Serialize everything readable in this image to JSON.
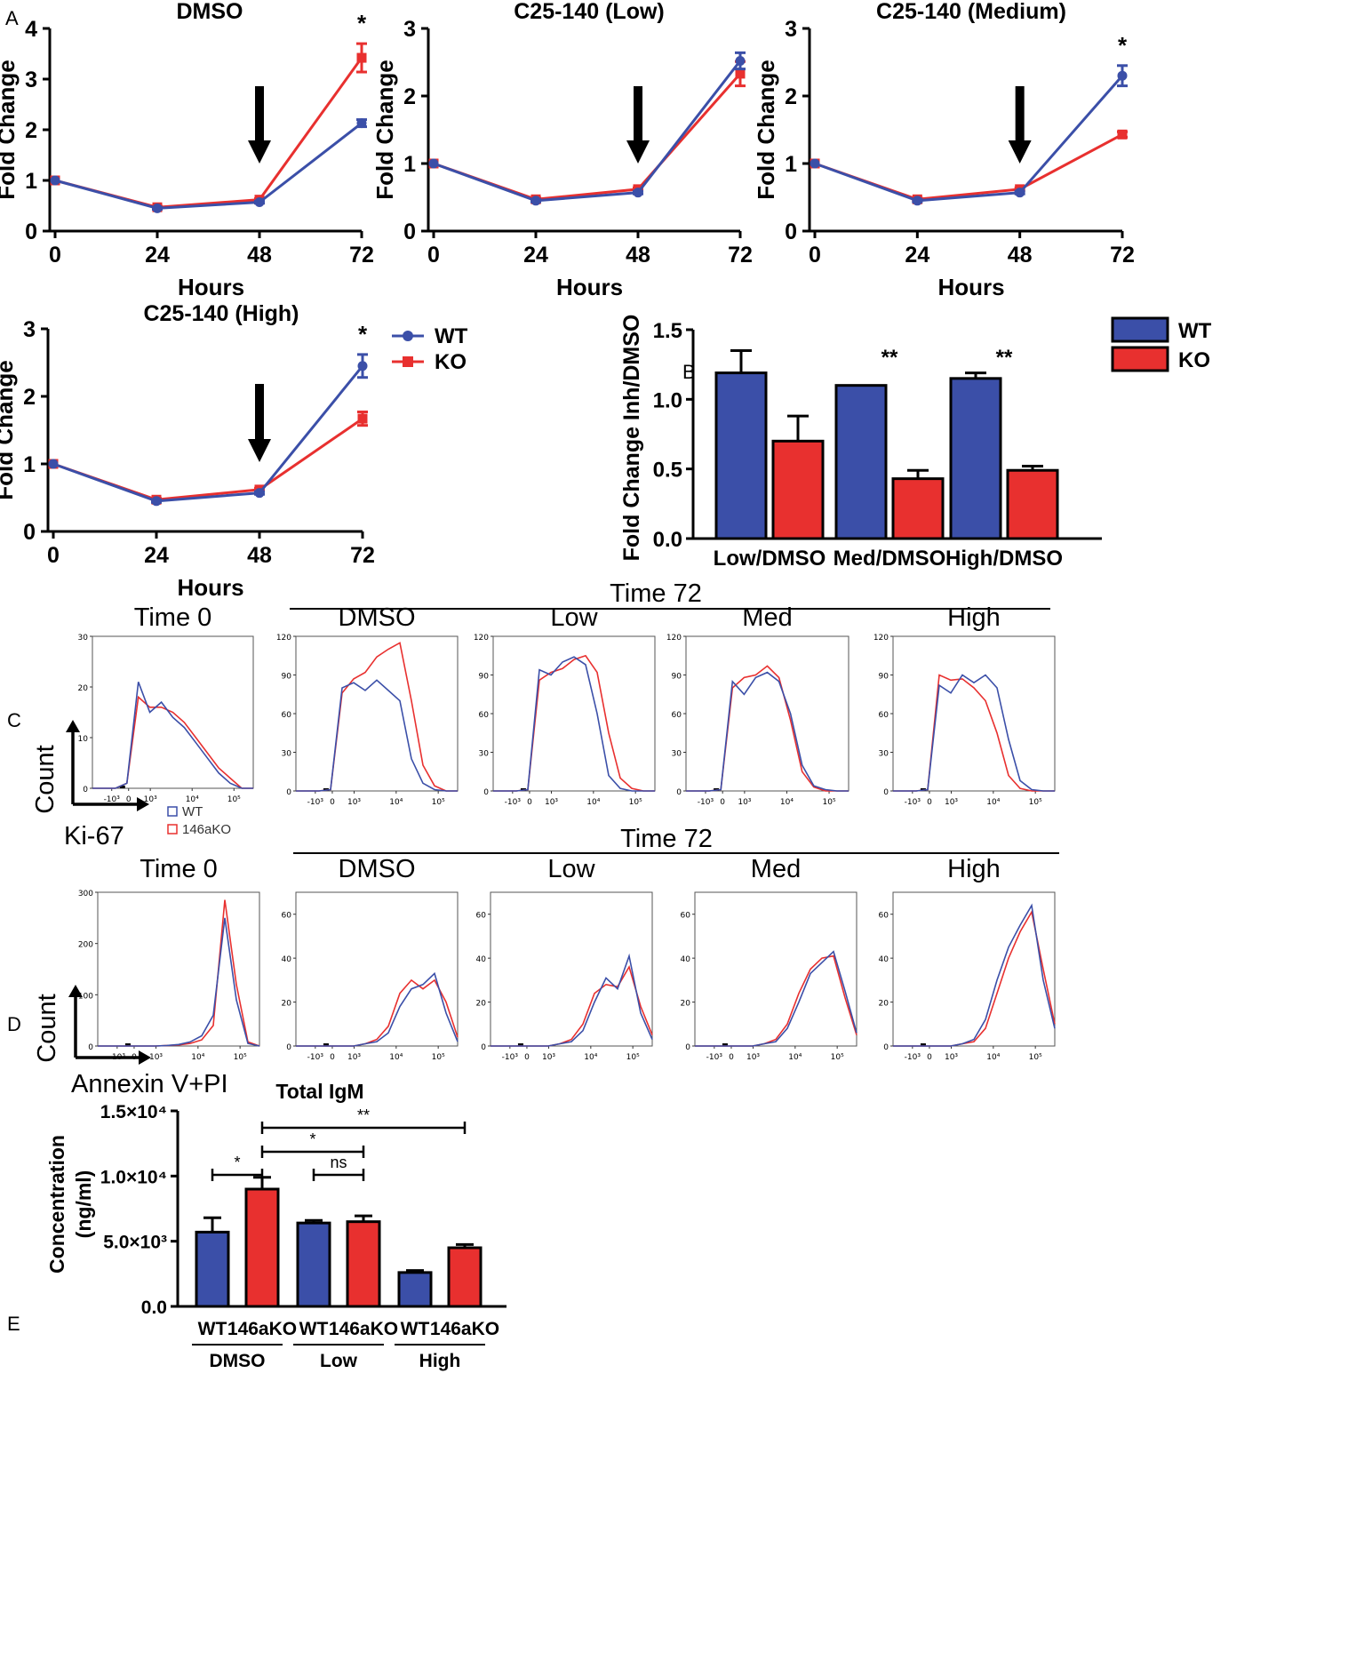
{
  "colors": {
    "wt": "#3b4fa8",
    "ko": "#e8302f",
    "axis": "#000000"
  },
  "panel_labels": {
    "a": "A",
    "b": "B",
    "c": "C",
    "d": "D",
    "e": "E"
  },
  "chart_data": [
    {
      "id": "A1",
      "type": "line",
      "title": "DMSO",
      "xlabel": "Hours",
      "ylabel": "Fold Change",
      "x": [
        0,
        24,
        48,
        72
      ],
      "xticks": [
        "0",
        "24",
        "48",
        "72"
      ],
      "ylim": [
        0,
        4
      ],
      "yticks": [
        "0",
        "1",
        "2",
        "3",
        "4"
      ],
      "arrow_at": 48,
      "sig": "*",
      "series": [
        {
          "name": "WT",
          "values": [
            1.0,
            0.45,
            0.57,
            2.13
          ],
          "err": [
            0,
            0.02,
            0.02,
            0.07
          ]
        },
        {
          "name": "KO",
          "values": [
            1.0,
            0.47,
            0.62,
            3.42
          ],
          "err": [
            0,
            0.02,
            0.02,
            0.28
          ]
        }
      ]
    },
    {
      "id": "A2",
      "type": "line",
      "title": "C25-140 (Low)",
      "xlabel": "Hours",
      "ylabel": "Fold Change",
      "x": [
        0,
        24,
        48,
        72
      ],
      "xticks": [
        "0",
        "24",
        "48",
        "72"
      ],
      "ylim": [
        0,
        3
      ],
      "yticks": [
        "0",
        "1",
        "2",
        "3"
      ],
      "arrow_at": 48,
      "sig": "",
      "series": [
        {
          "name": "WT",
          "values": [
            1.0,
            0.45,
            0.57,
            2.52
          ],
          "err": [
            0,
            0.02,
            0.02,
            0.12
          ]
        },
        {
          "name": "KO",
          "values": [
            1.0,
            0.47,
            0.62,
            2.33
          ],
          "err": [
            0,
            0.02,
            0.02,
            0.18
          ]
        }
      ]
    },
    {
      "id": "A3",
      "type": "line",
      "title": "C25-140 (Medium)",
      "xlabel": "Hours",
      "ylabel": "Fold Change",
      "x": [
        0,
        24,
        48,
        72
      ],
      "xticks": [
        "0",
        "24",
        "48",
        "72"
      ],
      "ylim": [
        0,
        3
      ],
      "yticks": [
        "0",
        "1",
        "2",
        "3"
      ],
      "arrow_at": 48,
      "sig": "*",
      "series": [
        {
          "name": "WT",
          "values": [
            1.0,
            0.45,
            0.57,
            2.3
          ],
          "err": [
            0,
            0.02,
            0.02,
            0.15
          ]
        },
        {
          "name": "KO",
          "values": [
            1.0,
            0.47,
            0.62,
            1.43
          ],
          "err": [
            0,
            0.02,
            0.02,
            0.04
          ]
        }
      ]
    },
    {
      "id": "A4",
      "type": "line",
      "title": "C25-140 (High)",
      "xlabel": "Hours",
      "ylabel": "Fold Change",
      "x": [
        0,
        24,
        48,
        72
      ],
      "xticks": [
        "0",
        "24",
        "48",
        "72"
      ],
      "ylim": [
        0,
        3
      ],
      "yticks": [
        "0",
        "1",
        "2",
        "3"
      ],
      "arrow_at": 48,
      "sig": "*",
      "legend": [
        {
          "name": "WT"
        },
        {
          "name": "KO"
        }
      ],
      "series": [
        {
          "name": "WT",
          "values": [
            1.0,
            0.45,
            0.57,
            2.45
          ],
          "err": [
            0,
            0.02,
            0.02,
            0.17
          ]
        },
        {
          "name": "KO",
          "values": [
            1.0,
            0.47,
            0.62,
            1.67
          ],
          "err": [
            0,
            0.02,
            0.02,
            0.1
          ]
        }
      ]
    },
    {
      "id": "B",
      "type": "bar",
      "title": "",
      "ylabel": "Fold Change Inh/DMSO",
      "xlabel": "",
      "categories": [
        "Low/DMSO",
        "Med/DMSO",
        "High/DMSO"
      ],
      "ylim": [
        0,
        1.5
      ],
      "yticks": [
        "0.0",
        "0.5",
        "1.0",
        "1.5"
      ],
      "sig": [
        "",
        "**",
        "**"
      ],
      "legend": [
        {
          "name": "WT"
        },
        {
          "name": "KO"
        }
      ],
      "series": [
        {
          "name": "WT",
          "values": [
            1.19,
            1.1,
            1.15
          ],
          "err": [
            0.16,
            0,
            0.04
          ]
        },
        {
          "name": "KO",
          "values": [
            0.7,
            0.43,
            0.49
          ],
          "err": [
            0.18,
            0.06,
            0.03
          ]
        }
      ]
    },
    {
      "id": "C",
      "type": "histogram",
      "marker_label": "Ki-67",
      "ylabel": "Count",
      "legend": [
        {
          "name": "WT"
        },
        {
          "name": "146aKO"
        }
      ],
      "group_title": "Time 72",
      "panels": [
        {
          "title": "Time 0",
          "ymax": 30,
          "yticks": [
            "0",
            "10",
            "20",
            "30"
          ],
          "xticks": [
            "-10³",
            "0",
            "10³",
            "10⁴",
            "10⁵"
          ],
          "wt": [
            0,
            0,
            0,
            1,
            21,
            15,
            17,
            14,
            12,
            9,
            6,
            3,
            1,
            0,
            0
          ],
          "ko": [
            0,
            0,
            0,
            1,
            18,
            16,
            16,
            15,
            13,
            10,
            7,
            4,
            2,
            0,
            0
          ]
        },
        {
          "title": "DMSO",
          "ymax": 120,
          "yticks": [
            "0",
            "30",
            "60",
            "90",
            "120"
          ],
          "xticks": [
            "-10³",
            "0",
            "10³",
            "10⁴",
            "10⁵"
          ],
          "wt": [
            0,
            0,
            0,
            1,
            80,
            84,
            78,
            86,
            78,
            70,
            25,
            6,
            1,
            0,
            0
          ],
          "ko": [
            0,
            0,
            0,
            1,
            76,
            87,
            92,
            104,
            110,
            115,
            70,
            20,
            4,
            0,
            0
          ]
        },
        {
          "title": "Low",
          "ymax": 120,
          "yticks": [
            "0",
            "30",
            "60",
            "90",
            "120"
          ],
          "xticks": [
            "-10³",
            "0",
            "10³",
            "10⁴",
            "10⁵"
          ],
          "wt": [
            0,
            0,
            0,
            1,
            94,
            90,
            100,
            104,
            98,
            60,
            12,
            2,
            0,
            0,
            0
          ],
          "ko": [
            0,
            0,
            0,
            1,
            86,
            92,
            95,
            102,
            105,
            92,
            45,
            10,
            2,
            0,
            0
          ]
        },
        {
          "title": "Med",
          "ymax": 120,
          "yticks": [
            "0",
            "30",
            "60",
            "90",
            "120"
          ],
          "xticks": [
            "-10³",
            "0",
            "10³",
            "10⁴",
            "10⁵"
          ],
          "wt": [
            0,
            0,
            0,
            1,
            85,
            75,
            88,
            92,
            85,
            60,
            20,
            4,
            1,
            0,
            0
          ],
          "ko": [
            0,
            0,
            0,
            1,
            80,
            88,
            90,
            97,
            88,
            55,
            15,
            3,
            0,
            0,
            0
          ]
        },
        {
          "title": "High",
          "ymax": 120,
          "yticks": [
            "0",
            "30",
            "60",
            "90",
            "120"
          ],
          "xticks": [
            "-10³",
            "0",
            "10³",
            "10⁴",
            "10⁵"
          ],
          "wt": [
            0,
            0,
            0,
            1,
            82,
            76,
            90,
            84,
            90,
            80,
            40,
            8,
            1,
            0,
            0
          ],
          "ko": [
            0,
            0,
            0,
            1,
            90,
            86,
            87,
            80,
            70,
            45,
            12,
            2,
            0,
            0,
            0
          ]
        }
      ]
    },
    {
      "id": "D",
      "type": "histogram",
      "marker_label": "Annexin V+PI",
      "ylabel": "Count",
      "group_title": "Time 72",
      "panels": [
        {
          "title": "Time 0",
          "ymax": 300,
          "yticks": [
            "0",
            "100",
            "200",
            "300"
          ],
          "xticks": [
            "-10³",
            "0",
            "10³",
            "10⁴",
            "10⁵"
          ],
          "wt": [
            0,
            0,
            0,
            0,
            0,
            0,
            1,
            3,
            8,
            20,
            60,
            250,
            90,
            5,
            0
          ],
          "ko": [
            0,
            0,
            0,
            0,
            0,
            0,
            1,
            2,
            5,
            12,
            40,
            285,
            120,
            8,
            0
          ]
        },
        {
          "title": "DMSO",
          "ymax": 70,
          "yticks": [
            "0",
            "20",
            "40",
            "60"
          ],
          "xticks": [
            "-10³",
            "0",
            "10³",
            "10⁴",
            "10⁵"
          ],
          "wt": [
            0,
            0,
            0,
            0,
            0,
            0,
            1,
            2,
            6,
            18,
            26,
            28,
            33,
            15,
            2
          ],
          "ko": [
            0,
            0,
            0,
            0,
            0,
            0,
            1,
            3,
            9,
            24,
            30,
            26,
            30,
            20,
            4
          ]
        },
        {
          "title": "Low",
          "ymax": 70,
          "yticks": [
            "0",
            "20",
            "40",
            "60"
          ],
          "xticks": [
            "-10³",
            "0",
            "10³",
            "10⁴",
            "10⁵"
          ],
          "wt": [
            0,
            0,
            0,
            0,
            0,
            0,
            1,
            2,
            7,
            20,
            31,
            26,
            41,
            15,
            3
          ],
          "ko": [
            0,
            0,
            0,
            0,
            0,
            0,
            1,
            3,
            10,
            24,
            28,
            27,
            36,
            18,
            5
          ]
        },
        {
          "title": "Med",
          "ymax": 70,
          "yticks": [
            "0",
            "20",
            "40",
            "60"
          ],
          "xticks": [
            "-10³",
            "0",
            "10³",
            "10⁴",
            "10⁵"
          ],
          "wt": [
            0,
            0,
            0,
            0,
            0,
            0,
            1,
            2,
            8,
            20,
            33,
            38,
            43,
            25,
            6
          ],
          "ko": [
            0,
            0,
            0,
            0,
            0,
            0,
            1,
            3,
            10,
            24,
            35,
            40,
            41,
            22,
            5
          ]
        },
        {
          "title": "High",
          "ymax": 70,
          "yticks": [
            "0",
            "20",
            "40",
            "60"
          ],
          "xticks": [
            "-10³",
            "0",
            "10³",
            "10⁴",
            "10⁵"
          ],
          "wt": [
            0,
            0,
            0,
            0,
            0,
            0,
            1,
            3,
            12,
            30,
            45,
            55,
            64,
            30,
            8
          ],
          "ko": [
            0,
            0,
            0,
            0,
            0,
            0,
            1,
            2,
            8,
            24,
            40,
            52,
            61,
            35,
            10
          ]
        }
      ]
    },
    {
      "id": "E",
      "type": "bar",
      "title": "Total IgM",
      "ylabel": "Concentration (ng/ml)",
      "xlabel": "",
      "categories": [
        "WT",
        "146aKO",
        "WT",
        "146aKO",
        "WT",
        "146aKO"
      ],
      "groups": [
        "DMSO",
        "Low",
        "High"
      ],
      "ylim": [
        0,
        15000
      ],
      "yticks": [
        "0.0",
        "5.0×10³",
        "1.0×10⁴",
        "1.5×10⁴"
      ],
      "values": [
        5700,
        9000,
        6400,
        6500,
        2600,
        4500
      ],
      "err": [
        1100,
        900,
        200,
        450,
        150,
        250
      ],
      "genotype": [
        "WT",
        "KO",
        "WT",
        "KO",
        "WT",
        "KO"
      ],
      "comparisons": [
        {
          "from": 0,
          "to": 1,
          "label": "*"
        },
        {
          "from": 1,
          "to": 3,
          "label": "*"
        },
        {
          "from": 2,
          "to": 3,
          "label": "ns"
        },
        {
          "from": 1,
          "to": 5,
          "label": "**"
        }
      ]
    }
  ]
}
